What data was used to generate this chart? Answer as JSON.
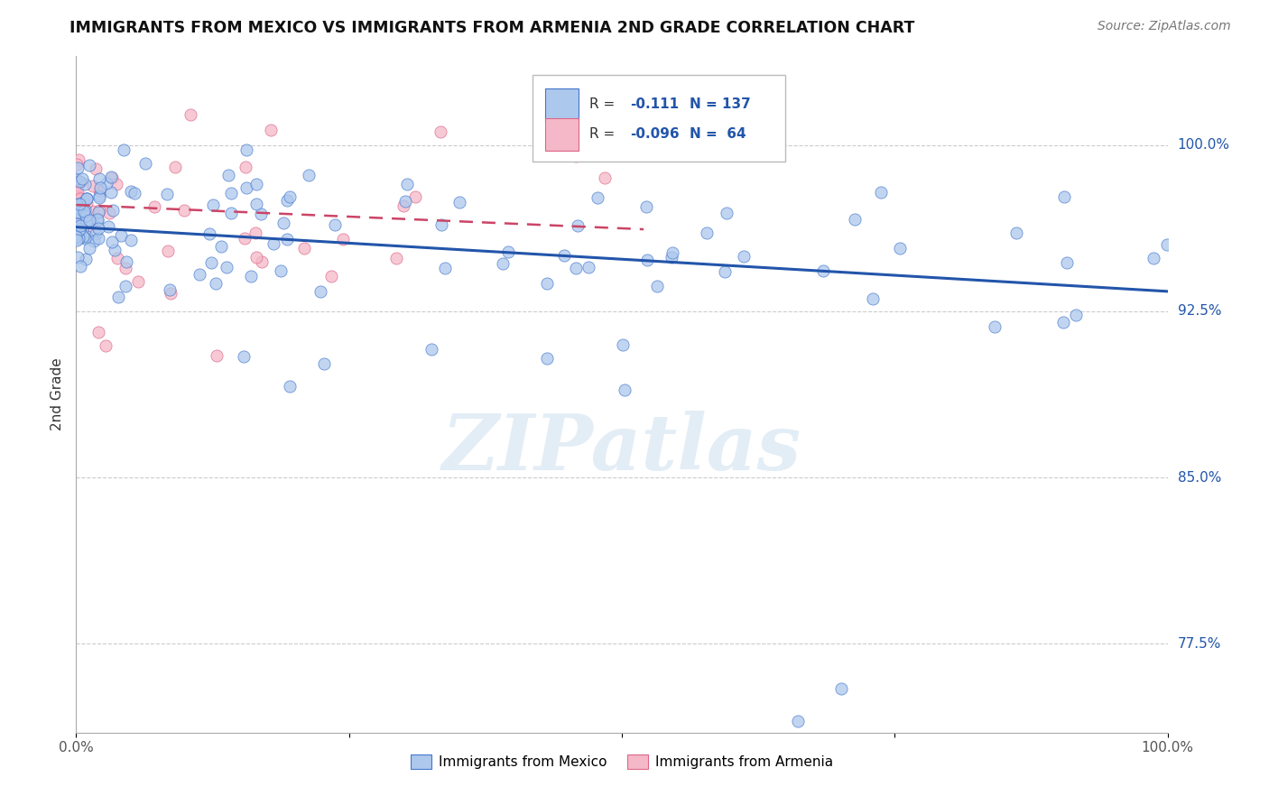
{
  "title": "IMMIGRANTS FROM MEXICO VS IMMIGRANTS FROM ARMENIA 2ND GRADE CORRELATION CHART",
  "source": "Source: ZipAtlas.com",
  "ylabel": "2nd Grade",
  "ytick_labels": [
    "77.5%",
    "85.0%",
    "92.5%",
    "100.0%"
  ],
  "ytick_values": [
    0.775,
    0.85,
    0.925,
    1.0
  ],
  "blue_color": "#adc8ed",
  "blue_edge_color": "#4477cc",
  "blue_line_color": "#2255aa",
  "pink_color": "#f4b8c8",
  "pink_edge_color": "#dd6688",
  "pink_line_color": "#cc4466",
  "watermark": "ZIPatlas",
  "background_color": "#ffffff",
  "blue_r": -0.111,
  "pink_r": -0.096,
  "blue_n": 137,
  "pink_n": 64,
  "xlim": [
    0.0,
    1.0
  ],
  "ylim": [
    0.735,
    1.04
  ],
  "blue_line_start_x": 0.0,
  "blue_line_end_x": 1.0,
  "blue_line_start_y": 0.963,
  "blue_line_end_y": 0.934,
  "pink_line_start_x": 0.0,
  "pink_line_end_x": 0.52,
  "pink_line_start_y": 0.973,
  "pink_line_end_y": 0.962
}
